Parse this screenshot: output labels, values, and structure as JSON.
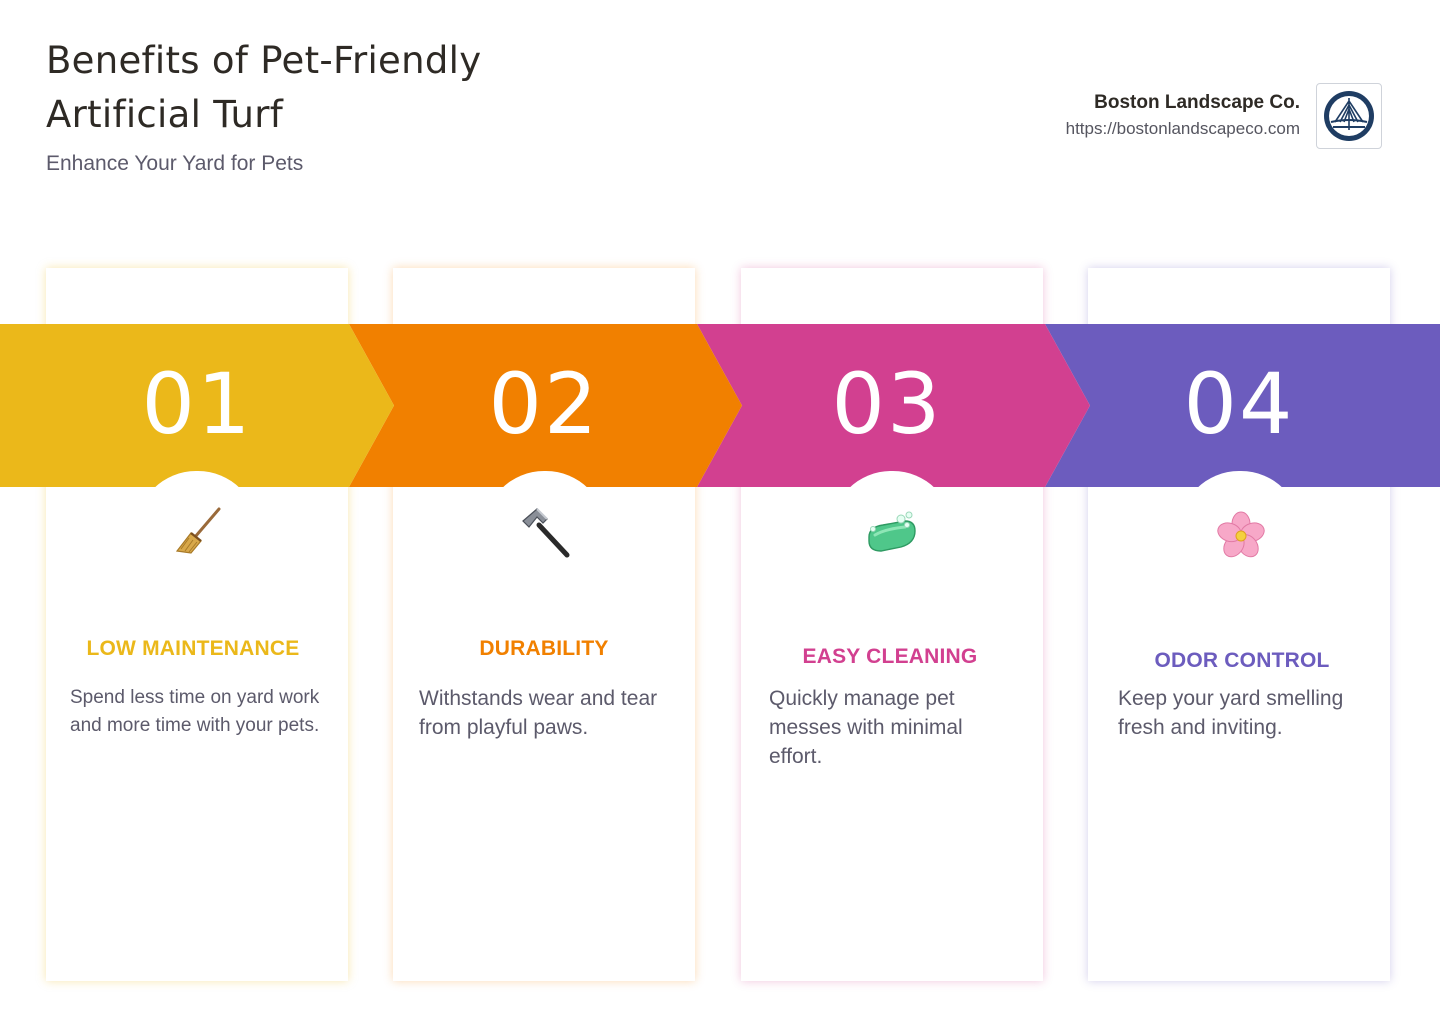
{
  "header": {
    "title": "Benefits of Pet-Friendly Artificial Turf",
    "subtitle": "Enhance Your Yard for Pets",
    "brand_name": "Boston Landscape Co.",
    "brand_url": "https://bostonlandscapeco.com",
    "logo_icon": "bridge-logo-icon"
  },
  "steps": [
    {
      "number": "01",
      "title": "LOW MAINTENANCE",
      "text": "Spend less time on yard work and more time with your pets.",
      "icon": "broom-icon",
      "color": "#ebb81a"
    },
    {
      "number": "02",
      "title": "DURABILITY",
      "text": "Withstands wear and tear from playful paws.",
      "icon": "hammer-icon",
      "color": "#f18000"
    },
    {
      "number": "03",
      "title": "EASY CLEANING",
      "text": "Quickly manage pet messes with minimal effort.",
      "icon": "soap-icon",
      "color": "#d24090"
    },
    {
      "number": "04",
      "title": "ODOR CONTROL",
      "text": "Keep your yard smelling fresh and inviting.",
      "icon": "blossom-icon",
      "color": "#6c5cbe"
    }
  ]
}
